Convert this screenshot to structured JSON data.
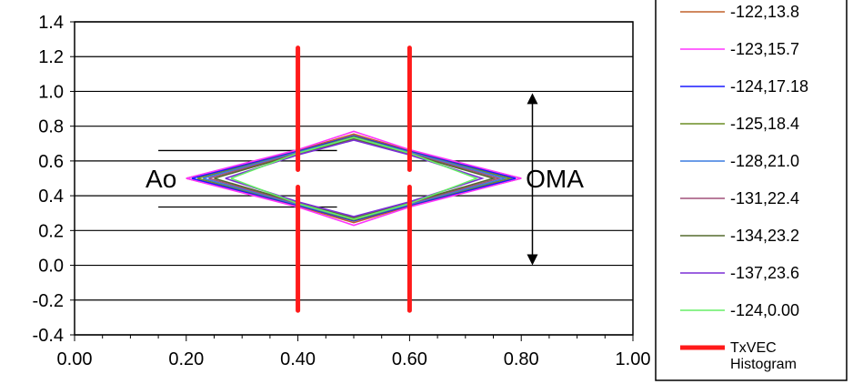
{
  "chart_data": {
    "type": "line",
    "title": "",
    "xlabel": "",
    "ylabel": "",
    "xlim": [
      0.0,
      1.0
    ],
    "ylim": [
      -0.4,
      1.4
    ],
    "x_ticks": [
      0.0,
      0.2,
      0.4,
      0.6,
      0.8,
      1.0
    ],
    "x_tick_labels": [
      "0.00",
      "0.20",
      "0.40",
      "0.60",
      "0.80",
      "1.00"
    ],
    "y_ticks": [
      -0.4,
      -0.2,
      0.0,
      0.2,
      0.4,
      0.6,
      0.8,
      1.0,
      1.2,
      1.4
    ],
    "y_tick_labels": [
      "-0.4",
      "-0.2",
      "0.0",
      "0.2",
      "0.4",
      "0.6",
      "0.8",
      "1.0",
      "1.2",
      "1.4"
    ],
    "grid": "horizontal",
    "legend_position": "right",
    "series": [
      {
        "name": "-122,13.8",
        "color": "#c0602a",
        "points": [
          [
            0.2,
            0.5
          ],
          [
            0.4,
            0.66
          ],
          [
            0.5,
            0.755
          ],
          [
            0.6,
            0.66
          ],
          [
            0.8,
            0.5
          ],
          [
            0.6,
            0.34
          ],
          [
            0.5,
            0.245
          ],
          [
            0.4,
            0.34
          ],
          [
            0.2,
            0.5
          ]
        ]
      },
      {
        "name": "-123,15.7",
        "color": "#ff33ff",
        "points": [
          [
            0.2,
            0.5
          ],
          [
            0.4,
            0.665
          ],
          [
            0.5,
            0.77
          ],
          [
            0.6,
            0.665
          ],
          [
            0.8,
            0.5
          ],
          [
            0.6,
            0.335
          ],
          [
            0.5,
            0.23
          ],
          [
            0.4,
            0.335
          ],
          [
            0.2,
            0.5
          ]
        ]
      },
      {
        "name": "-124,17.18",
        "color": "#1a1aff",
        "points": [
          [
            0.21,
            0.5
          ],
          [
            0.4,
            0.655
          ],
          [
            0.5,
            0.745
          ],
          [
            0.6,
            0.655
          ],
          [
            0.79,
            0.5
          ],
          [
            0.6,
            0.345
          ],
          [
            0.5,
            0.255
          ],
          [
            0.4,
            0.345
          ],
          [
            0.21,
            0.5
          ]
        ]
      },
      {
        "name": "-125,18.4",
        "color": "#6b8e23",
        "points": [
          [
            0.22,
            0.5
          ],
          [
            0.4,
            0.65
          ],
          [
            0.5,
            0.74
          ],
          [
            0.6,
            0.65
          ],
          [
            0.78,
            0.5
          ],
          [
            0.6,
            0.35
          ],
          [
            0.5,
            0.26
          ],
          [
            0.4,
            0.35
          ],
          [
            0.22,
            0.5
          ]
        ]
      },
      {
        "name": "-128,21.0",
        "color": "#3a7be0",
        "points": [
          [
            0.23,
            0.5
          ],
          [
            0.4,
            0.65
          ],
          [
            0.5,
            0.735
          ],
          [
            0.6,
            0.65
          ],
          [
            0.77,
            0.5
          ],
          [
            0.6,
            0.35
          ],
          [
            0.5,
            0.265
          ],
          [
            0.4,
            0.35
          ],
          [
            0.23,
            0.5
          ]
        ]
      },
      {
        "name": "-131,22.4",
        "color": "#a0507a",
        "points": [
          [
            0.24,
            0.5
          ],
          [
            0.4,
            0.645
          ],
          [
            0.5,
            0.73
          ],
          [
            0.6,
            0.645
          ],
          [
            0.76,
            0.5
          ],
          [
            0.6,
            0.355
          ],
          [
            0.5,
            0.27
          ],
          [
            0.4,
            0.355
          ],
          [
            0.24,
            0.5
          ]
        ]
      },
      {
        "name": "-134,23.2",
        "color": "#556b2f",
        "points": [
          [
            0.25,
            0.5
          ],
          [
            0.4,
            0.64
          ],
          [
            0.5,
            0.725
          ],
          [
            0.6,
            0.64
          ],
          [
            0.75,
            0.5
          ],
          [
            0.6,
            0.36
          ],
          [
            0.5,
            0.275
          ],
          [
            0.4,
            0.36
          ],
          [
            0.25,
            0.5
          ]
        ]
      },
      {
        "name": "-137,23.6",
        "color": "#7b2fd6",
        "points": [
          [
            0.27,
            0.5
          ],
          [
            0.4,
            0.635
          ],
          [
            0.5,
            0.72
          ],
          [
            0.6,
            0.635
          ],
          [
            0.73,
            0.5
          ],
          [
            0.6,
            0.365
          ],
          [
            0.5,
            0.28
          ],
          [
            0.4,
            0.365
          ],
          [
            0.27,
            0.5
          ]
        ]
      },
      {
        "name": "-124,0.00",
        "color": "#66ee66",
        "points": [
          [
            0.28,
            0.5
          ],
          [
            0.4,
            0.645
          ],
          [
            0.5,
            0.735
          ],
          [
            0.6,
            0.645
          ],
          [
            0.72,
            0.5
          ],
          [
            0.6,
            0.355
          ],
          [
            0.5,
            0.265
          ],
          [
            0.4,
            0.355
          ],
          [
            0.28,
            0.5
          ]
        ]
      }
    ],
    "histogram_series": {
      "name": "TxVEC Histogram",
      "color": "#ff1a1a",
      "segments": [
        {
          "x": 0.4,
          "y": [
            0.55,
            1.25
          ]
        },
        {
          "x": 0.4,
          "y": [
            -0.26,
            0.45
          ]
        },
        {
          "x": 0.6,
          "y": [
            0.55,
            1.25
          ]
        },
        {
          "x": 0.6,
          "y": [
            -0.26,
            0.45
          ]
        }
      ]
    },
    "annotations": [
      {
        "text": "Ao",
        "x": 0.155,
        "y": 0.5
      },
      {
        "text": "OMA",
        "x": 0.86,
        "y": 0.5
      }
    ],
    "reference_lines": [
      {
        "x": [
          0.15,
          0.47
        ],
        "y": 0.66
      },
      {
        "x": [
          0.15,
          0.47
        ],
        "y": 0.335
      }
    ],
    "oma_arrow": {
      "x": 0.82,
      "y": [
        0.0,
        0.99
      ]
    }
  }
}
